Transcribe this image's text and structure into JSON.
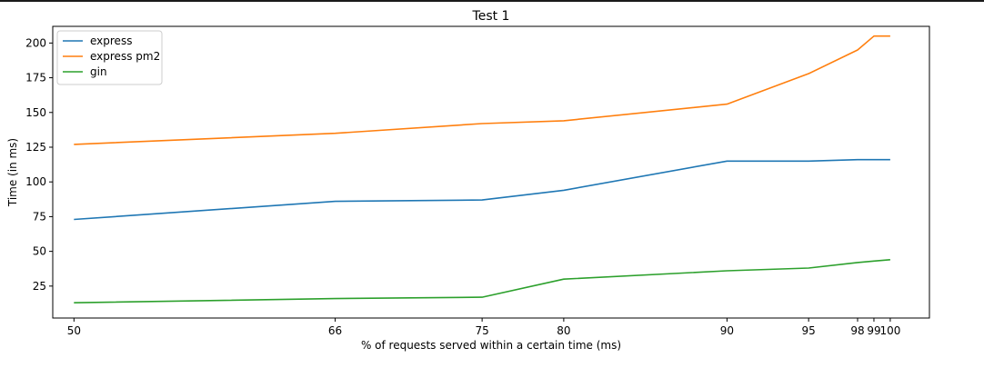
{
  "chart_data": {
    "type": "line",
    "title": "Test 1",
    "xlabel": "% of requests served within a certain time (ms)",
    "ylabel": "Time (in ms)",
    "x": [
      50,
      66,
      75,
      80,
      90,
      95,
      98,
      99,
      100
    ],
    "x_ticks": [
      "50",
      "66",
      "75",
      "80",
      "90",
      "95",
      "98",
      "99",
      "100"
    ],
    "y_ticks": [
      25,
      50,
      75,
      100,
      125,
      150,
      175,
      200
    ],
    "xlim": [
      48.7,
      102.4
    ],
    "ylim": [
      2,
      212
    ],
    "grid": false,
    "legend_position": "top-left",
    "series": [
      {
        "name": "express",
        "color": "#1f77b4",
        "values": [
          73,
          86,
          87,
          94,
          115,
          115,
          116,
          116,
          116
        ]
      },
      {
        "name": "express pm2",
        "color": "#ff7f0e",
        "values": [
          127,
          135,
          142,
          144,
          156,
          178,
          195,
          205,
          205
        ]
      },
      {
        "name": "gin",
        "color": "#2ca02c",
        "values": [
          13,
          16,
          17,
          30,
          36,
          38,
          42,
          43,
          44
        ]
      }
    ]
  }
}
